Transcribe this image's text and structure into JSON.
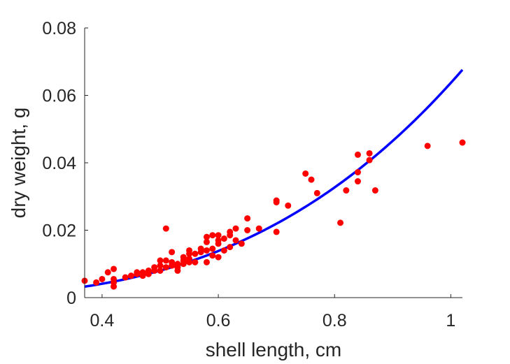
{
  "chart_data": {
    "type": "scatter",
    "title": "",
    "xlabel": "shell length, cm",
    "ylabel": "dry weight, g",
    "xlim": [
      0.37,
      1.02
    ],
    "ylim": [
      0,
      0.08
    ],
    "x_ticks": [
      0.4,
      0.6,
      0.8,
      1.0
    ],
    "x_tick_labels": [
      "0.4",
      "0.6",
      "0.8",
      "1"
    ],
    "y_ticks": [
      0,
      0.02,
      0.04,
      0.06,
      0.08
    ],
    "y_tick_labels": [
      "0",
      "0.02",
      "0.04",
      "0.06",
      "0.08"
    ],
    "grid": false,
    "series": [
      {
        "kind": "points",
        "color": "#ff0000",
        "x": [
          0.37,
          0.39,
          0.4,
          0.41,
          0.42,
          0.42,
          0.42,
          0.42,
          0.44,
          0.45,
          0.46,
          0.46,
          0.47,
          0.47,
          0.48,
          0.48,
          0.49,
          0.49,
          0.5,
          0.5,
          0.5,
          0.51,
          0.51,
          0.51,
          0.52,
          0.52,
          0.52,
          0.53,
          0.53,
          0.53,
          0.54,
          0.54,
          0.54,
          0.55,
          0.55,
          0.55,
          0.55,
          0.56,
          0.56,
          0.57,
          0.57,
          0.58,
          0.58,
          0.58,
          0.58,
          0.59,
          0.59,
          0.59,
          0.6,
          0.6,
          0.6,
          0.6,
          0.61,
          0.61,
          0.62,
          0.62,
          0.62,
          0.63,
          0.63,
          0.64,
          0.65,
          0.65,
          0.67,
          0.7,
          0.7,
          0.7,
          0.72,
          0.75,
          0.76,
          0.77,
          0.81,
          0.82,
          0.84,
          0.84,
          0.84,
          0.86,
          0.86,
          0.87,
          0.96,
          1.02
        ],
        "y": [
          0.005,
          0.0045,
          0.0055,
          0.0075,
          0.0085,
          0.0055,
          0.0045,
          0.0033,
          0.006,
          0.0065,
          0.007,
          0.0075,
          0.0065,
          0.0075,
          0.008,
          0.007,
          0.008,
          0.009,
          0.008,
          0.0095,
          0.011,
          0.009,
          0.011,
          0.0205,
          0.0095,
          0.0105,
          0.0135,
          0.008,
          0.009,
          0.01,
          0.01,
          0.011,
          0.012,
          0.0105,
          0.0115,
          0.013,
          0.014,
          0.0105,
          0.013,
          0.0135,
          0.0145,
          0.0105,
          0.014,
          0.0165,
          0.018,
          0.0125,
          0.0145,
          0.0185,
          0.012,
          0.016,
          0.017,
          0.0185,
          0.014,
          0.0175,
          0.015,
          0.0185,
          0.0195,
          0.017,
          0.0205,
          0.016,
          0.02,
          0.0235,
          0.0205,
          0.0195,
          0.0283,
          0.0288,
          0.0273,
          0.0368,
          0.035,
          0.031,
          0.0222,
          0.0318,
          0.0345,
          0.0372,
          0.0424,
          0.0408,
          0.0428,
          0.0318,
          0.045,
          0.046
        ]
      },
      {
        "kind": "fit",
        "color": "#0000ff",
        "model": "power",
        "coef": 0.0637,
        "exponent": 2.99
      }
    ]
  }
}
